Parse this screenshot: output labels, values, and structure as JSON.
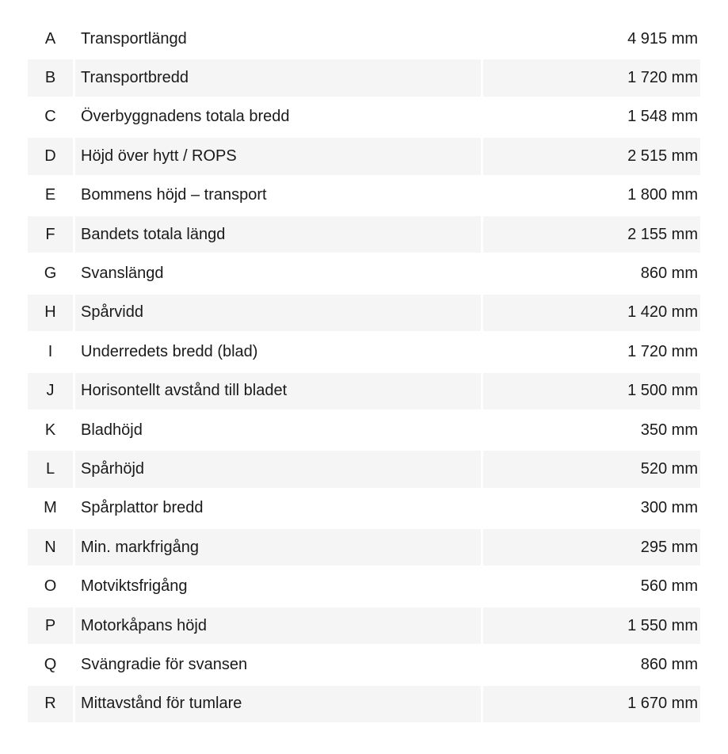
{
  "rows": [
    {
      "letter": "A",
      "label": "Transportlängd",
      "value": "4 915 mm"
    },
    {
      "letter": "B",
      "label": "Transportbredd",
      "value": "1 720 mm"
    },
    {
      "letter": "C",
      "label": "Överbyggnadens totala bredd",
      "value": "1 548 mm"
    },
    {
      "letter": "D",
      "label": "Höjd över hytt / ROPS",
      "value": "2 515 mm"
    },
    {
      "letter": "E",
      "label": "Bommens höjd – transport",
      "value": "1 800 mm"
    },
    {
      "letter": "F",
      "label": "Bandets totala längd",
      "value": "2 155 mm"
    },
    {
      "letter": "G",
      "label": "Svanslängd",
      "value": "860 mm"
    },
    {
      "letter": "H",
      "label": "Spårvidd",
      "value": "1 420 mm"
    },
    {
      "letter": "I",
      "label": "Underredets bredd (blad)",
      "value": "1 720 mm"
    },
    {
      "letter": "J",
      "label": "Horisontellt avstånd till bladet",
      "value": "1 500 mm"
    },
    {
      "letter": "K",
      "label": "Bladhöjd",
      "value": "350 mm"
    },
    {
      "letter": "L",
      "label": "Spårhöjd",
      "value": "520 mm"
    },
    {
      "letter": "M",
      "label": "Spårplattor bredd",
      "value": "300 mm"
    },
    {
      "letter": "N",
      "label": "Min. markfrigång",
      "value": "295 mm"
    },
    {
      "letter": "O",
      "label": "Motviktsfrigång",
      "value": "560 mm"
    },
    {
      "letter": "P",
      "label": "Motorkåpans höjd",
      "value": "1 550 mm"
    },
    {
      "letter": "Q",
      "label": "Svängradie för svansen",
      "value": "860 mm"
    },
    {
      "letter": "R",
      "label": "Mittavstånd för tumlare",
      "value": "1 670 mm"
    }
  ]
}
